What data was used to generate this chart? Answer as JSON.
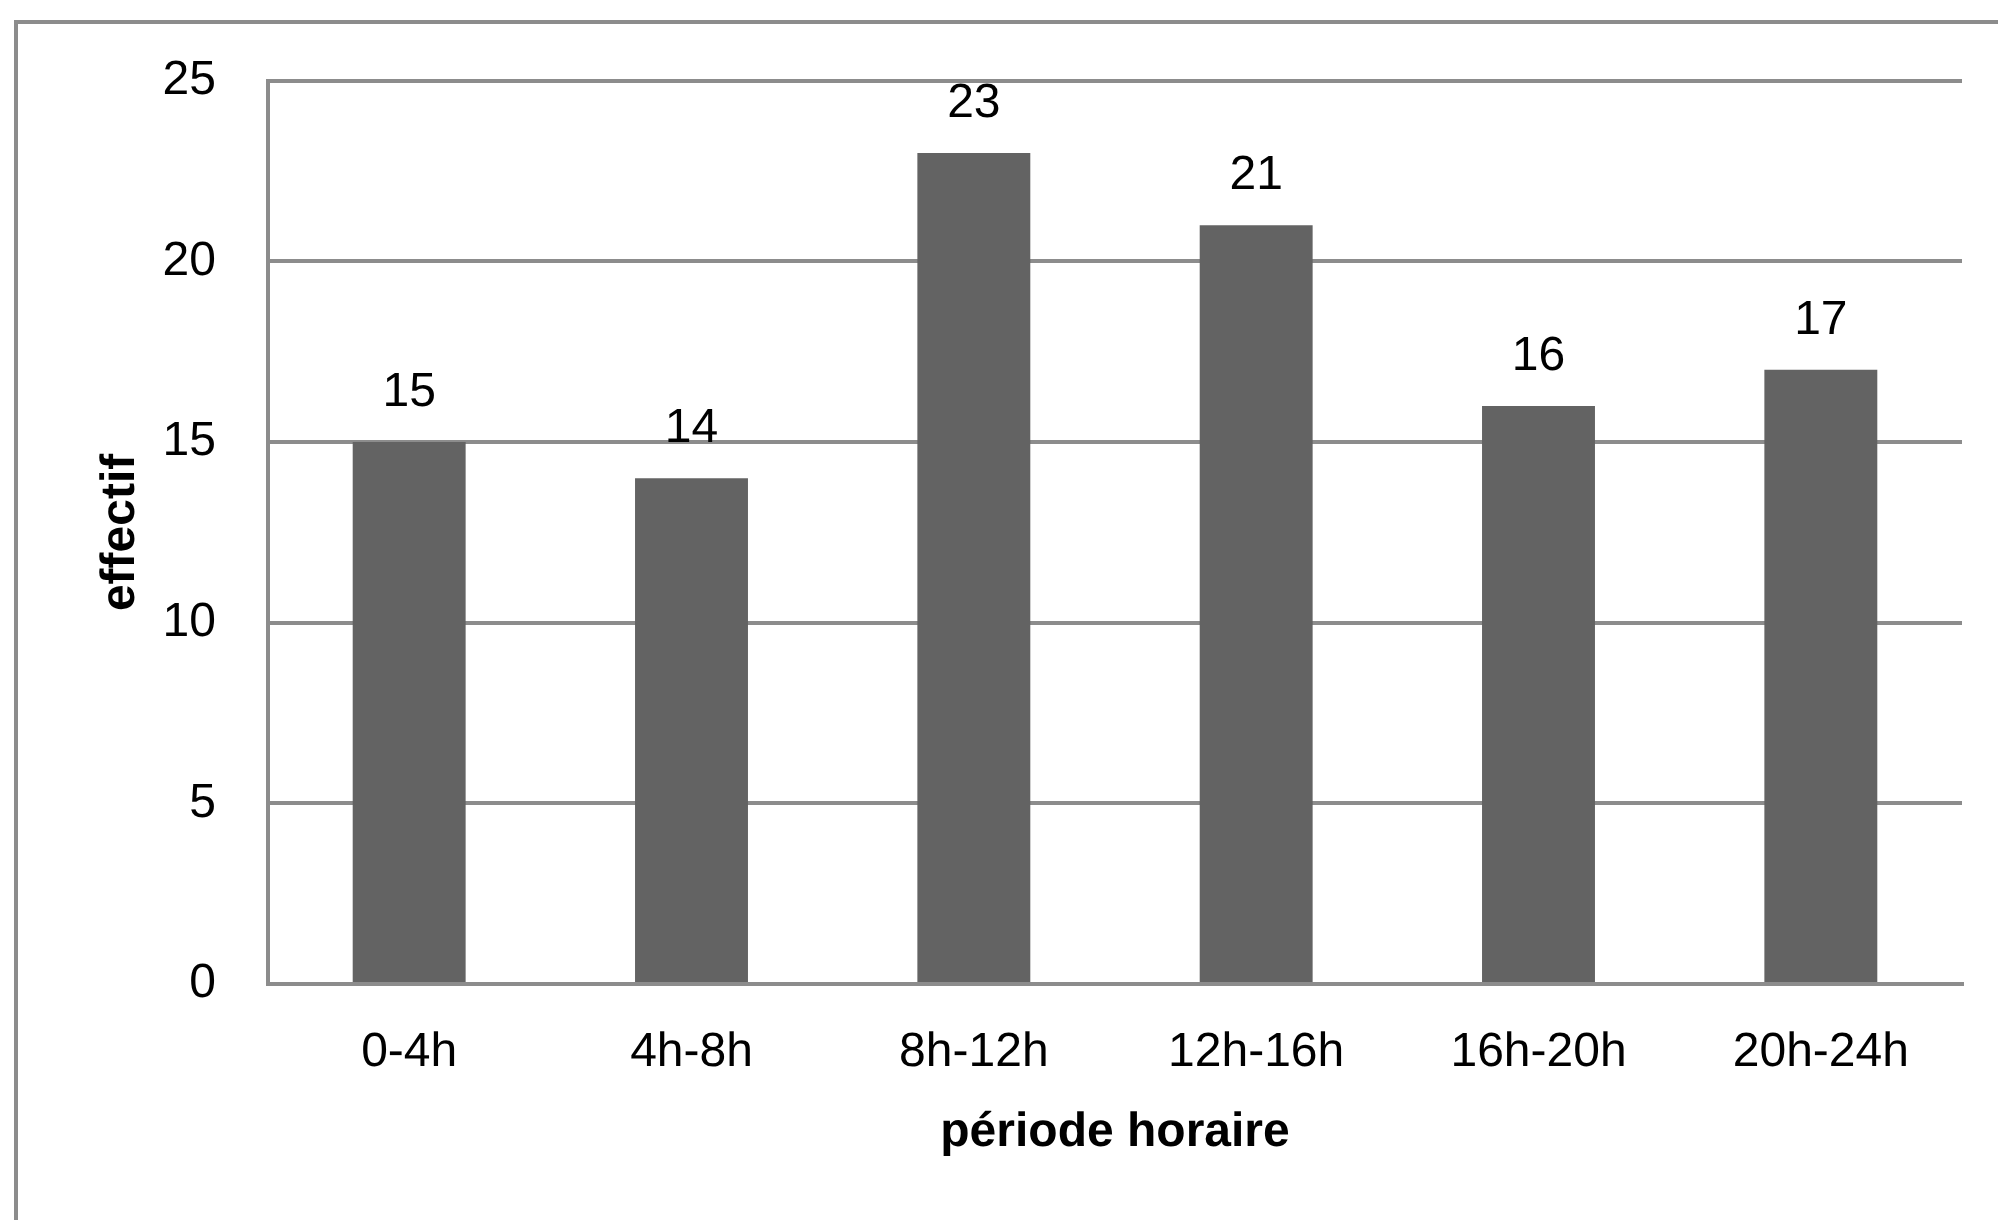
{
  "chart_data": {
    "type": "bar",
    "xlabel": "période horaire",
    "ylabel": "effectif",
    "categories": [
      "0-4h",
      "4h-8h",
      "8h-12h",
      "12h-16h",
      "16h-20h",
      "20h-24h"
    ],
    "values": [
      15,
      14,
      23,
      21,
      16,
      17
    ],
    "color": "#636363",
    "ylim": [
      0,
      25
    ],
    "yticks": [
      0,
      5,
      10,
      15,
      20,
      25
    ],
    "grid": "y",
    "data_labels": true
  }
}
